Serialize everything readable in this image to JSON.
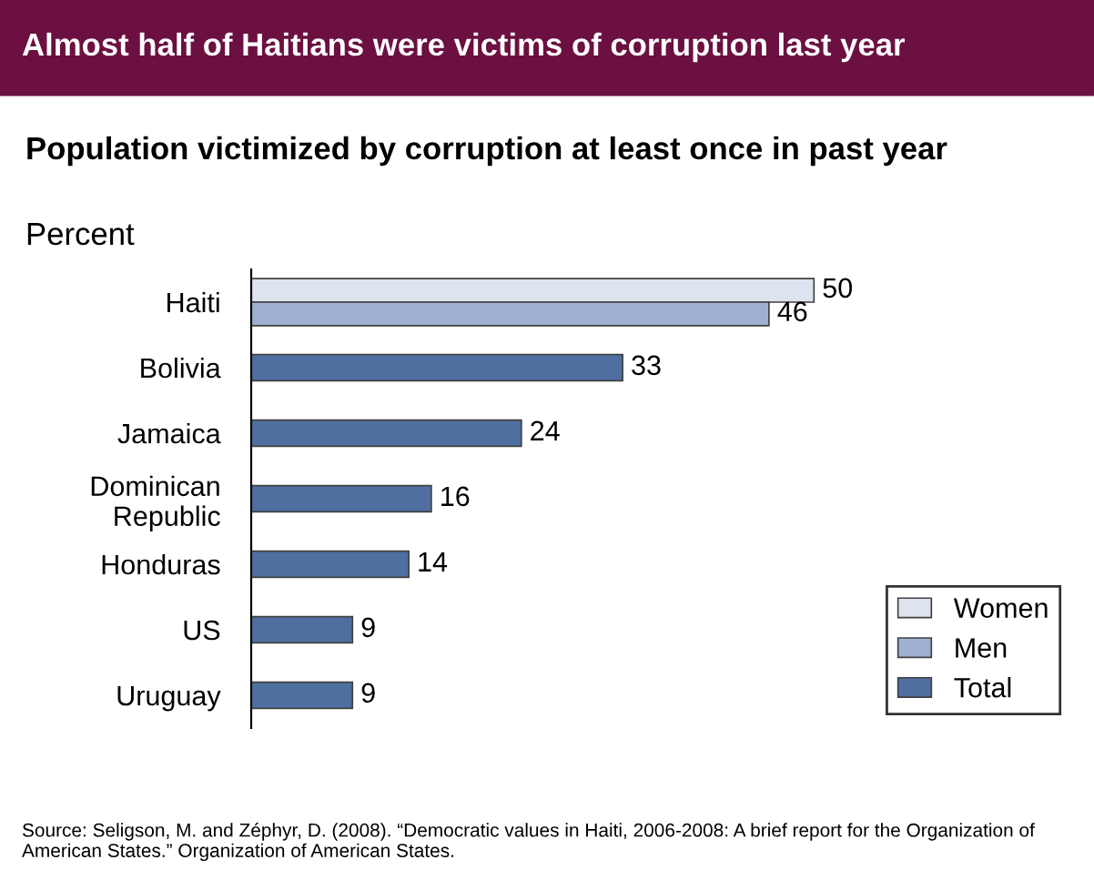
{
  "chart_data": {
    "type": "bar",
    "orientation": "horizontal",
    "title": "Almost half of Haitians were victims of corruption last year",
    "subtitle": "Population victimized by corruption at least once in past year",
    "categories": [
      "Haiti",
      "Bolivia",
      "Jamaica",
      "Dominican Republic",
      "Honduras",
      "US",
      "Uruguay"
    ],
    "series": [
      {
        "name": "Women",
        "color": "#dde3ef",
        "values": [
          50,
          null,
          null,
          null,
          null,
          null,
          null
        ]
      },
      {
        "name": "Men",
        "color": "#9fb1d3",
        "values": [
          46,
          null,
          null,
          null,
          null,
          null,
          null
        ]
      },
      {
        "name": "Total",
        "color": "#4f6fa0",
        "values": [
          null,
          33,
          24,
          16,
          14,
          9,
          9
        ]
      }
    ],
    "data_labels": true,
    "legend": "bottom right",
    "grid": false,
    "tick_labels": "y",
    "annotations": [
      "Percent",
      "Source: Seligson, M. and Zéphyr, D. (2008). “Democratic values in Haiti, 2006-2008: A brief report for the Organization of American States.” Organization of American States."
    ]
  }
}
